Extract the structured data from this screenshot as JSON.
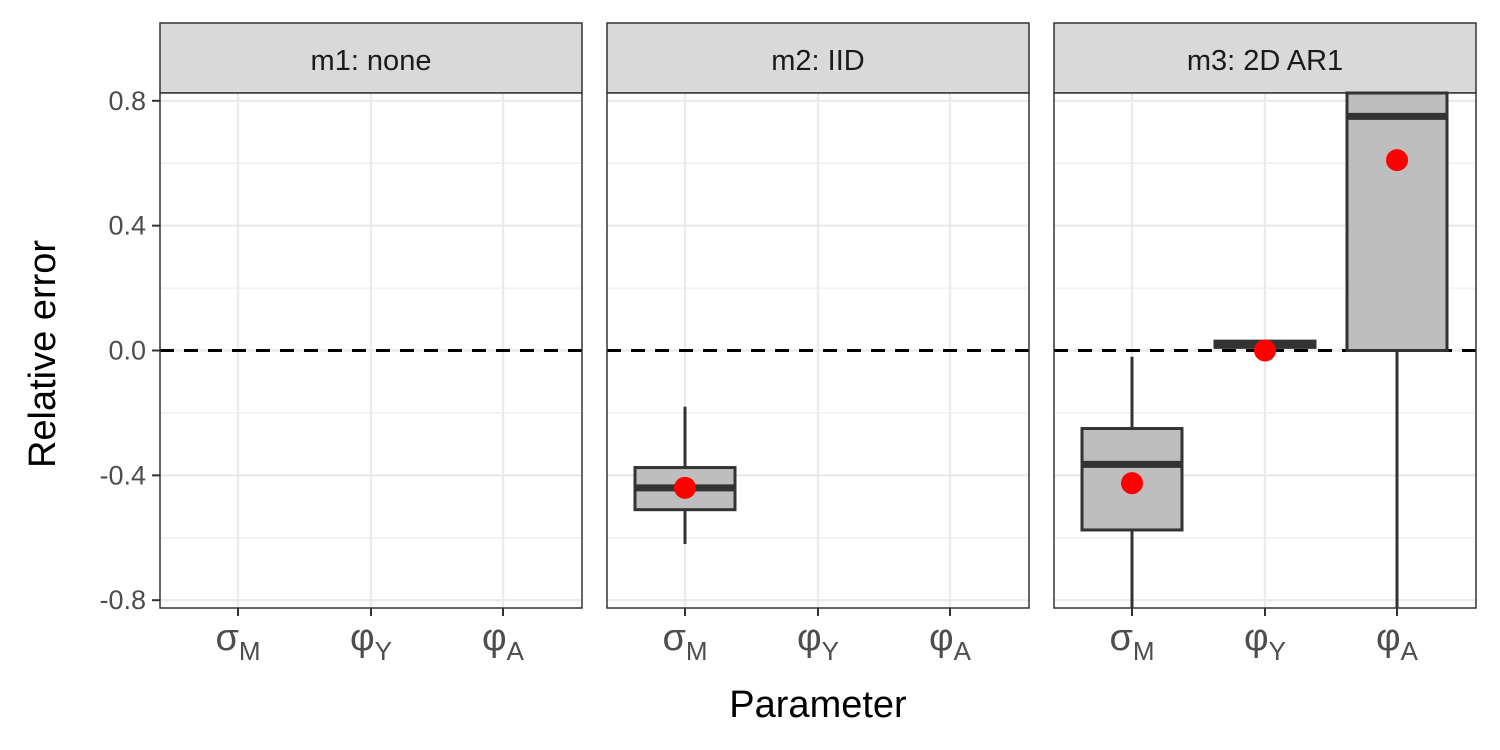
{
  "chart_data": {
    "type": "boxplot",
    "xlabel": "Parameter",
    "ylabel": "Relative error",
    "ylim": [
      -0.825,
      0.825
    ],
    "yticks": [
      "0.8",
      "0.4",
      "0.0",
      "-0.4",
      "-0.8"
    ],
    "ytick_values": [
      0.8,
      0.4,
      0.0,
      -0.4,
      -0.8
    ],
    "reference_line": {
      "y": 0.0,
      "style": "dashed",
      "color": "#000000"
    },
    "grid": true,
    "colors": {
      "box_fill": "#bebebe",
      "box_stroke": "#333333",
      "mean_point": "#ff0000",
      "strip_fill": "#d9d9d9"
    },
    "categories": [
      {
        "symbol": "σ",
        "subscript": "M"
      },
      {
        "symbol": "φ",
        "subscript": "Y"
      },
      {
        "symbol": "φ",
        "subscript": "A"
      }
    ],
    "facets": [
      {
        "label": "m1:  none",
        "boxes": []
      },
      {
        "label": "m2:  IID",
        "boxes": [
          {
            "category_index": 0,
            "whisker_low": -0.62,
            "q1": -0.51,
            "median": -0.44,
            "q3": -0.375,
            "whisker_high": -0.18,
            "mean": -0.44
          }
        ]
      },
      {
        "label": "m3:  2D  AR1",
        "boxes": [
          {
            "category_index": 0,
            "whisker_low": -0.825,
            "q1": -0.575,
            "median": -0.365,
            "q3": -0.25,
            "whisker_high": -0.02,
            "mean": -0.425
          },
          {
            "category_index": 1,
            "whisker_low": 0.01,
            "q1": 0.01,
            "median": 0.02,
            "q3": 0.03,
            "whisker_high": 0.03,
            "mean": 0.0
          },
          {
            "category_index": 2,
            "whisker_low": -0.825,
            "q1": 0.0,
            "median": 0.75,
            "q3": 0.825,
            "whisker_high": 0.825,
            "mean": 0.61
          }
        ]
      }
    ]
  }
}
